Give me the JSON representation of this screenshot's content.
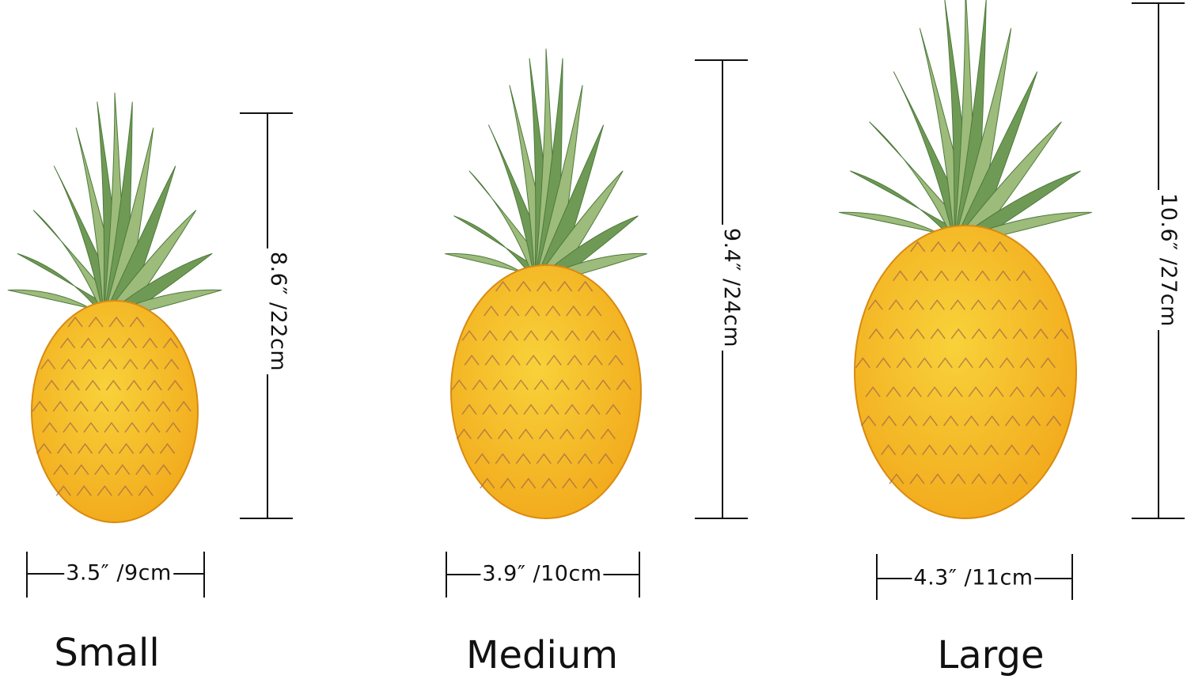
{
  "products": [
    {
      "name": "Small",
      "height": "8.6″ /22cm",
      "width": "3.5″ /9cm"
    },
    {
      "name": "Medium",
      "height": "9.4″ /24cm",
      "width": "3.9″ /10cm"
    },
    {
      "name": "Large",
      "height": "10.6″ /27cm",
      "width": "4.3″ /11cm"
    }
  ],
  "colors": {
    "fruit": "#f2a91c",
    "fruit_highlight": "#f8d23a",
    "leaf": "#6f9a55",
    "leaf_light": "#9dbb7a",
    "line": "#111111"
  }
}
